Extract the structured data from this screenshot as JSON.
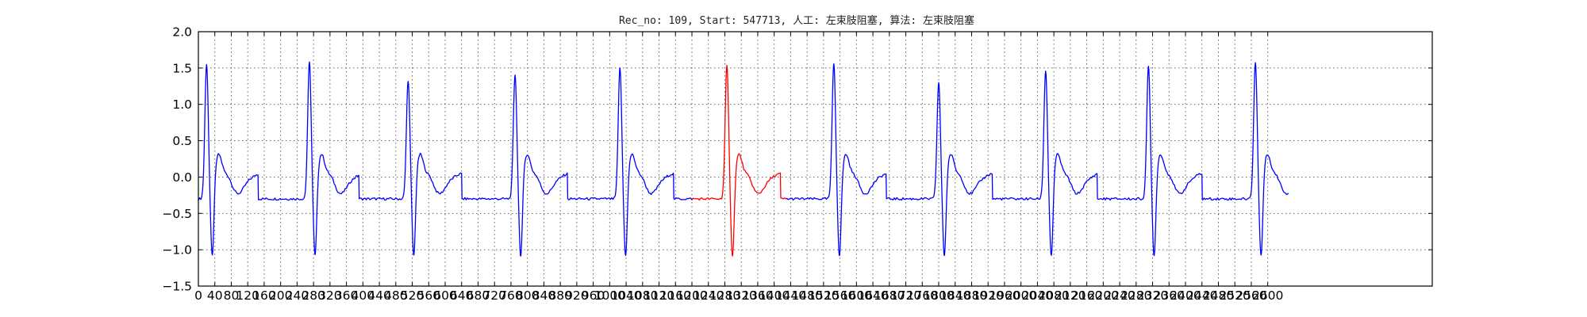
{
  "chart_data": {
    "type": "line",
    "title": "Rec_no: 109, Start: 547713, 人工: 左束肢阻塞, 算法: 左束肢阻塞",
    "xlabel": "",
    "ylabel": "",
    "xlim": [
      0,
      3000
    ],
    "ylim": [
      -1.5,
      2.0
    ],
    "x_tick_values": [
      0,
      40,
      80,
      120,
      160,
      200,
      240,
      280,
      320,
      360,
      400,
      440,
      480,
      520,
      560,
      600,
      640,
      680,
      720,
      760,
      800,
      840,
      880,
      920,
      960,
      1000,
      1040,
      1080,
      1120,
      1160,
      1200,
      1240,
      1280,
      1320,
      1360,
      1400,
      1440,
      1480,
      1520,
      1560,
      1600,
      1640,
      1680,
      1720,
      1760,
      1800,
      1840,
      1880,
      1920,
      1960,
      2000,
      2040,
      2080,
      2120,
      2160,
      2200,
      2240,
      2280,
      2320,
      2360,
      2400,
      2440,
      2480,
      2520,
      2560,
      2600
    ],
    "x_tick_labels": [
      "0",
      "40",
      "80",
      "120",
      "160",
      "200",
      "240",
      "280",
      "320",
      "360",
      "400",
      "440",
      "480",
      "520",
      "560",
      "600",
      "640",
      "680",
      "720",
      "760",
      "800",
      "840",
      "880",
      "920",
      "960",
      "1000",
      "1040",
      "1080",
      "1120",
      "1160",
      "1200",
      "1240",
      "1280",
      "1320",
      "1360",
      "1400",
      "1440",
      "1480",
      "1520",
      "1560",
      "1600",
      "1640",
      "1680",
      "1720",
      "1760",
      "1800",
      "1840",
      "1880",
      "1920",
      "1960",
      "2000",
      "2040",
      "2080",
      "2120",
      "2160",
      "2200",
      "2240",
      "2280",
      "2320",
      "2360",
      "2400",
      "2440",
      "2480",
      "2520",
      "2560",
      "2600"
    ],
    "y_tick_values": [
      -1.5,
      -1.0,
      -0.5,
      0.0,
      0.5,
      1.0,
      1.5,
      2.0
    ],
    "y_tick_labels": [
      "−1.5",
      "−1.0",
      "−0.5",
      "0.0",
      "0.5",
      "1.0",
      "1.5",
      "2.0"
    ],
    "grid": true,
    "sample_count": 2650,
    "beats": [
      {
        "r_peak_x": 20,
        "r_peak_y": 1.55
      },
      {
        "r_peak_x": 270,
        "r_peak_y": 1.57
      },
      {
        "r_peak_x": 510,
        "r_peak_y": 1.33
      },
      {
        "r_peak_x": 770,
        "r_peak_y": 1.4
      },
      {
        "r_peak_x": 1025,
        "r_peak_y": 1.5
      },
      {
        "r_peak_x": 1285,
        "r_peak_y": 1.52
      },
      {
        "r_peak_x": 1545,
        "r_peak_y": 1.56
      },
      {
        "r_peak_x": 1800,
        "r_peak_y": 1.29
      },
      {
        "r_peak_x": 2060,
        "r_peak_y": 1.46
      },
      {
        "r_peak_x": 2310,
        "r_peak_y": 1.51
      },
      {
        "r_peak_x": 2570,
        "r_peak_y": 1.58
      }
    ],
    "series": [
      {
        "color": "#0000ff",
        "x_range": [
          0,
          1200
        ]
      },
      {
        "color": "#ff0000",
        "x_range": [
          1200,
          1430
        ]
      },
      {
        "color": "#0000ff",
        "x_range": [
          1430,
          2650
        ]
      }
    ]
  }
}
